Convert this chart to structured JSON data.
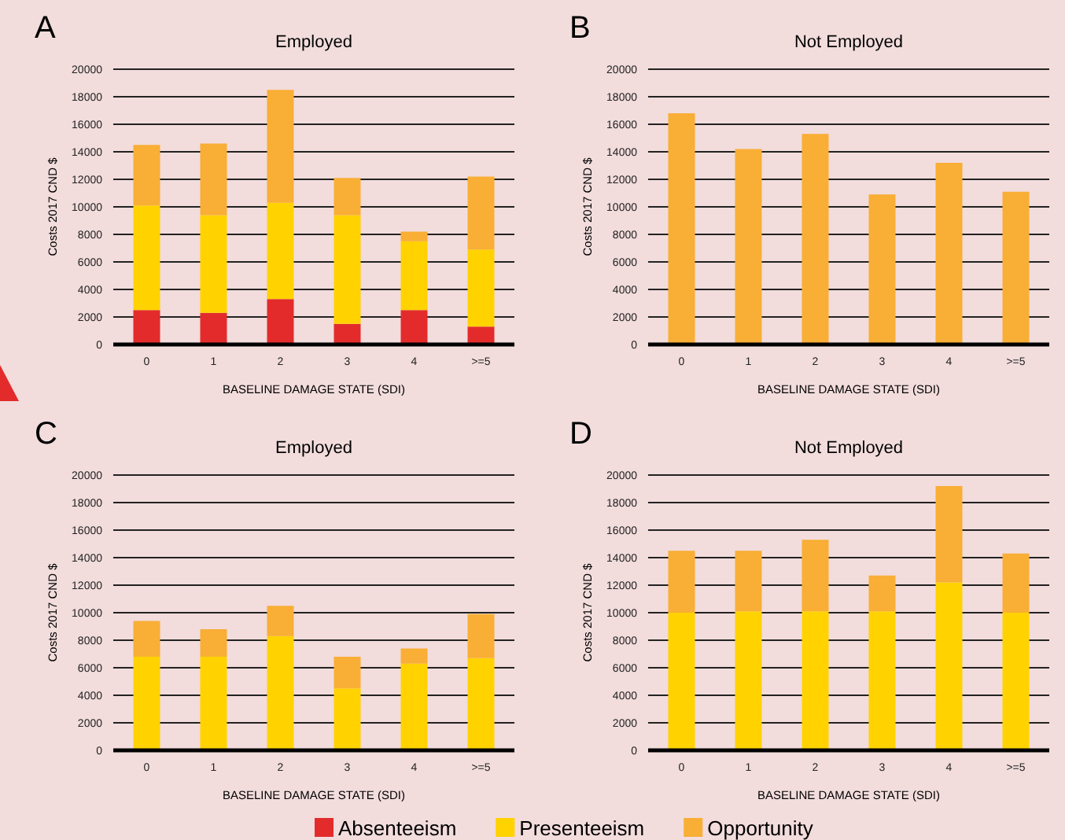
{
  "chart_data": [
    {
      "type": "bar",
      "stacked": true,
      "title": "Employed",
      "annotations": [
        "A"
      ],
      "xlabel": "BASELINE DAMAGE STATE (SDI)",
      "ylabel": "Costs  2017 CND $",
      "categories": [
        "0",
        "1",
        "2",
        "3",
        "4",
        ">=5"
      ],
      "ylim": [
        0,
        20000
      ],
      "yticks": [
        0,
        2000,
        4000,
        6000,
        8000,
        10000,
        12000,
        14000,
        16000,
        18000,
        20000
      ],
      "grid": "y",
      "legend": "bottom",
      "series": [
        {
          "name": "Absenteeism",
          "color": "#e32b2b",
          "values": [
            2500,
            2300,
            3300,
            1500,
            2500,
            1300
          ]
        },
        {
          "name": "Presenteeism",
          "color": "#ffd200",
          "values": [
            7600,
            7100,
            7000,
            7900,
            5000,
            5600
          ]
        },
        {
          "name": "Opportunity",
          "color": "#f9ae35",
          "values": [
            4400,
            5200,
            8200,
            2700,
            700,
            5300
          ]
        }
      ]
    },
    {
      "type": "bar",
      "stacked": true,
      "title": "Not Employed",
      "annotations": [
        "B"
      ],
      "xlabel": "BASELINE DAMAGE STATE (SDI)",
      "ylabel": "Costs  2017 CND $",
      "categories": [
        "0",
        "1",
        "2",
        "3",
        "4",
        ">=5"
      ],
      "ylim": [
        0,
        20000
      ],
      "yticks": [
        0,
        2000,
        4000,
        6000,
        8000,
        10000,
        12000,
        14000,
        16000,
        18000,
        20000
      ],
      "grid": "y",
      "series": [
        {
          "color": "#f9ae35",
          "values": [
            16800,
            14200,
            15300,
            10900,
            13200,
            11100
          ]
        }
      ]
    },
    {
      "type": "bar",
      "stacked": true,
      "title": "Employed",
      "annotations": [
        "C"
      ],
      "xlabel": "BASELINE DAMAGE STATE (SDI)",
      "ylabel": "Costs  2017 CND $",
      "categories": [
        "0",
        "1",
        "2",
        "3",
        "4",
        ">=5"
      ],
      "ylim": [
        0,
        20000
      ],
      "yticks": [
        0,
        2000,
        4000,
        6000,
        8000,
        10000,
        12000,
        14000,
        16000,
        18000,
        20000
      ],
      "grid": "y",
      "series": [
        {
          "color": "#ffd200",
          "values": [
            6800,
            6800,
            8300,
            4500,
            6300,
            6700
          ]
        },
        {
          "color": "#f9ae35",
          "values": [
            2600,
            2000,
            2200,
            2300,
            1100,
            3200
          ]
        }
      ]
    },
    {
      "type": "bar",
      "stacked": true,
      "title": "Not Employed",
      "annotations": [
        "D"
      ],
      "xlabel": "BASELINE DAMAGE STATE (SDI)",
      "ylabel": "Costs  2017 CND $",
      "categories": [
        "0",
        "1",
        "2",
        "3",
        "4",
        ">=5"
      ],
      "ylim": [
        0,
        20000
      ],
      "yticks": [
        0,
        2000,
        4000,
        6000,
        8000,
        10000,
        12000,
        14000,
        16000,
        18000,
        20000
      ],
      "grid": "y",
      "series": [
        {
          "color": "#ffd200",
          "values": [
            10000,
            10100,
            10100,
            10100,
            12200,
            10000
          ]
        },
        {
          "color": "#f9ae35",
          "values": [
            4500,
            4400,
            5200,
            2600,
            7000,
            4300
          ]
        }
      ]
    }
  ]
}
